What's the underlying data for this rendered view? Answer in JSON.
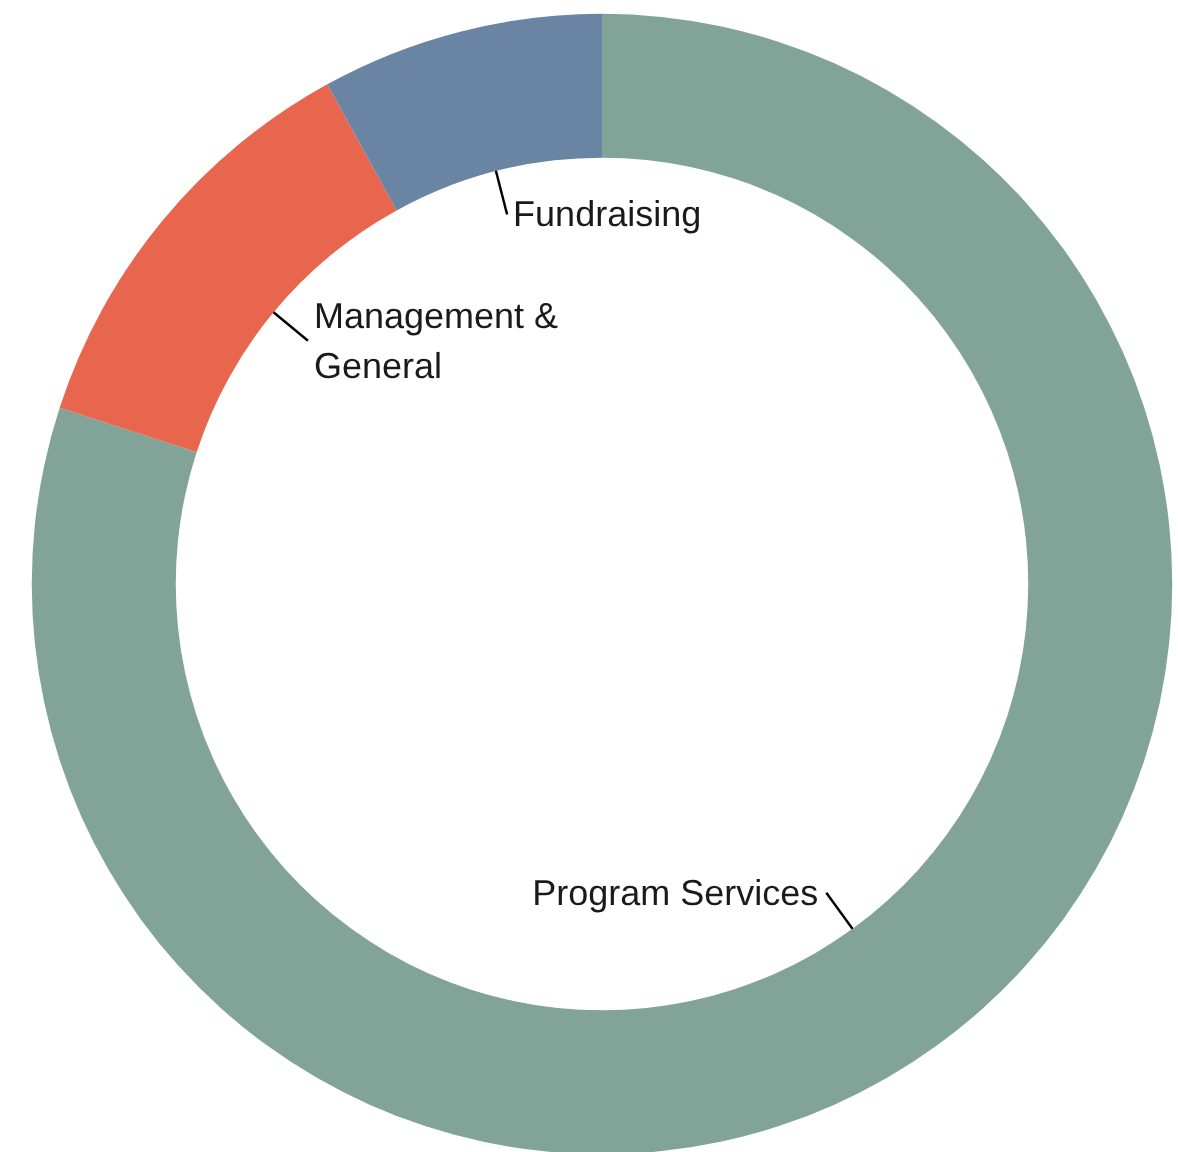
{
  "chart_data": {
    "type": "donut",
    "categories": [
      "Program Services",
      "Management & General",
      "Fundraising"
    ],
    "values": [
      80,
      12,
      8
    ],
    "colors": [
      "#82a398",
      "#e8664d",
      "#6a84a3"
    ],
    "legend": false
  }
}
